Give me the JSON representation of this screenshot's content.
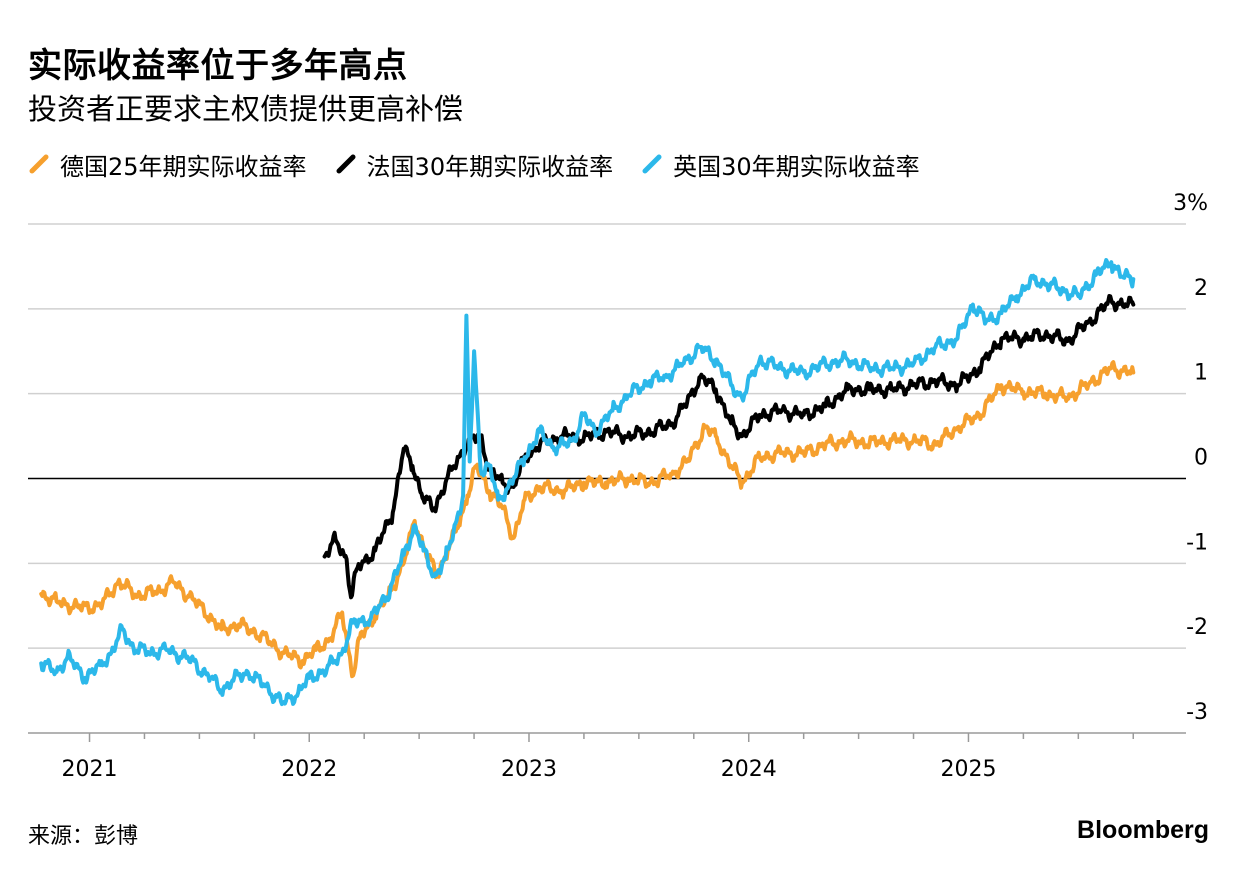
{
  "header": {
    "title": "实际收益率位于多年高点",
    "subtitle": "投资者正要求主权债提供更高补偿"
  },
  "footer": {
    "source": "来源：彭博",
    "brand": "Bloomberg"
  },
  "chart_data": {
    "type": "line",
    "title": "实际收益率位于多年高点",
    "subtitle": "投资者正要求主权债提供更高补偿",
    "xlabel": "",
    "ylabel": "",
    "unit": "%",
    "ylim": [
      -3,
      3
    ],
    "xlim": [
      2020.72,
      2025.99
    ],
    "yticks": [
      -3,
      -2,
      -1,
      0,
      1,
      2,
      3
    ],
    "ytick_labels": [
      "-3",
      "-2",
      "-1",
      "0",
      "1",
      "2",
      "3%"
    ],
    "xticks": [
      2021,
      2022,
      2023,
      2024,
      2025
    ],
    "xtick_labels": [
      "2021",
      "2022",
      "2023",
      "2024",
      "2025"
    ],
    "grid": true,
    "legend_position": "top-left",
    "series": [
      {
        "name": "德国25年期实际收益率",
        "color": "#f6a02e",
        "points": [
          [
            2020.78,
            -1.36
          ],
          [
            2020.85,
            -1.45
          ],
          [
            2020.95,
            -1.52
          ],
          [
            2021.05,
            -1.5
          ],
          [
            2021.13,
            -1.22
          ],
          [
            2021.22,
            -1.38
          ],
          [
            2021.32,
            -1.32
          ],
          [
            2021.38,
            -1.22
          ],
          [
            2021.45,
            -1.38
          ],
          [
            2021.52,
            -1.55
          ],
          [
            2021.6,
            -1.78
          ],
          [
            2021.68,
            -1.72
          ],
          [
            2021.78,
            -1.85
          ],
          [
            2021.88,
            -2.05
          ],
          [
            2021.97,
            -2.15
          ],
          [
            2022.03,
            -2.02
          ],
          [
            2022.1,
            -1.88
          ],
          [
            2022.15,
            -1.58
          ],
          [
            2022.18,
            -2.05
          ],
          [
            2022.2,
            -2.32
          ],
          [
            2022.23,
            -1.88
          ],
          [
            2022.3,
            -1.62
          ],
          [
            2022.36,
            -1.38
          ],
          [
            2022.43,
            -1.0
          ],
          [
            2022.48,
            -0.5
          ],
          [
            2022.52,
            -0.8
          ],
          [
            2022.58,
            -1.15
          ],
          [
            2022.63,
            -0.85
          ],
          [
            2022.68,
            -0.55
          ],
          [
            2022.72,
            -0.2
          ],
          [
            2022.76,
            0.15
          ],
          [
            2022.82,
            -0.15
          ],
          [
            2022.88,
            -0.35
          ],
          [
            2022.93,
            -0.7
          ],
          [
            2022.98,
            -0.25
          ],
          [
            2023.05,
            -0.1
          ],
          [
            2023.15,
            -0.15
          ],
          [
            2023.25,
            -0.05
          ],
          [
            2023.35,
            -0.05
          ],
          [
            2023.45,
            0.0
          ],
          [
            2023.55,
            -0.05
          ],
          [
            2023.65,
            0.05
          ],
          [
            2023.72,
            0.2
          ],
          [
            2023.8,
            0.6
          ],
          [
            2023.85,
            0.5
          ],
          [
            2023.92,
            0.15
          ],
          [
            2023.97,
            -0.05
          ],
          [
            2024.05,
            0.25
          ],
          [
            2024.15,
            0.3
          ],
          [
            2024.25,
            0.3
          ],
          [
            2024.35,
            0.4
          ],
          [
            2024.45,
            0.45
          ],
          [
            2024.55,
            0.42
          ],
          [
            2024.65,
            0.45
          ],
          [
            2024.75,
            0.45
          ],
          [
            2024.85,
            0.4
          ],
          [
            2024.95,
            0.6
          ],
          [
            2025.05,
            0.75
          ],
          [
            2025.15,
            1.1
          ],
          [
            2025.25,
            1.02
          ],
          [
            2025.35,
            1.0
          ],
          [
            2025.45,
            0.95
          ],
          [
            2025.55,
            1.12
          ],
          [
            2025.65,
            1.3
          ],
          [
            2025.75,
            1.25
          ]
        ]
      },
      {
        "name": "法国30年期实际收益率",
        "color": "#000000",
        "points": [
          [
            2022.07,
            -0.92
          ],
          [
            2022.12,
            -0.72
          ],
          [
            2022.17,
            -0.95
          ],
          [
            2022.19,
            -1.4
          ],
          [
            2022.22,
            -1.05
          ],
          [
            2022.3,
            -0.85
          ],
          [
            2022.38,
            -0.4
          ],
          [
            2022.43,
            0.35
          ],
          [
            2022.47,
            0.15
          ],
          [
            2022.52,
            -0.25
          ],
          [
            2022.57,
            -0.35
          ],
          [
            2022.62,
            -0.05
          ],
          [
            2022.68,
            0.25
          ],
          [
            2022.73,
            0.45
          ],
          [
            2022.78,
            0.5
          ],
          [
            2022.82,
            0.1
          ],
          [
            2022.88,
            -0.05
          ],
          [
            2022.93,
            -0.1
          ],
          [
            2022.98,
            0.25
          ],
          [
            2023.05,
            0.4
          ],
          [
            2023.15,
            0.5
          ],
          [
            2023.25,
            0.48
          ],
          [
            2023.35,
            0.55
          ],
          [
            2023.45,
            0.5
          ],
          [
            2023.55,
            0.55
          ],
          [
            2023.65,
            0.65
          ],
          [
            2023.72,
            0.9
          ],
          [
            2023.78,
            1.2
          ],
          [
            2023.85,
            1.05
          ],
          [
            2023.92,
            0.65
          ],
          [
            2023.97,
            0.5
          ],
          [
            2024.05,
            0.75
          ],
          [
            2024.15,
            0.8
          ],
          [
            2024.25,
            0.75
          ],
          [
            2024.35,
            0.85
          ],
          [
            2024.45,
            1.05
          ],
          [
            2024.55,
            1.05
          ],
          [
            2024.65,
            1.05
          ],
          [
            2024.75,
            1.1
          ],
          [
            2024.85,
            1.15
          ],
          [
            2024.95,
            1.1
          ],
          [
            2025.05,
            1.3
          ],
          [
            2025.15,
            1.65
          ],
          [
            2025.25,
            1.65
          ],
          [
            2025.35,
            1.7
          ],
          [
            2025.45,
            1.62
          ],
          [
            2025.55,
            1.85
          ],
          [
            2025.65,
            2.1
          ],
          [
            2025.7,
            2.05
          ],
          [
            2025.75,
            2.05
          ]
        ]
      },
      {
        "name": "英国30年期实际收益率",
        "color": "#2cb8ea",
        "points": [
          [
            2020.78,
            -2.18
          ],
          [
            2020.85,
            -2.28
          ],
          [
            2020.9,
            -2.1
          ],
          [
            2020.98,
            -2.35
          ],
          [
            2021.05,
            -2.2
          ],
          [
            2021.1,
            -2.05
          ],
          [
            2021.15,
            -1.78
          ],
          [
            2021.2,
            -2.0
          ],
          [
            2021.28,
            -2.05
          ],
          [
            2021.35,
            -2.02
          ],
          [
            2021.45,
            -2.12
          ],
          [
            2021.55,
            -2.35
          ],
          [
            2021.6,
            -2.5
          ],
          [
            2021.65,
            -2.38
          ],
          [
            2021.72,
            -2.28
          ],
          [
            2021.8,
            -2.45
          ],
          [
            2021.88,
            -2.65
          ],
          [
            2021.95,
            -2.52
          ],
          [
            2022.0,
            -2.35
          ],
          [
            2022.08,
            -2.25
          ],
          [
            2022.15,
            -2.05
          ],
          [
            2022.2,
            -1.7
          ],
          [
            2022.28,
            -1.65
          ],
          [
            2022.35,
            -1.4
          ],
          [
            2022.43,
            -0.9
          ],
          [
            2022.48,
            -0.55
          ],
          [
            2022.52,
            -0.85
          ],
          [
            2022.57,
            -1.15
          ],
          [
            2022.62,
            -0.95
          ],
          [
            2022.67,
            -0.5
          ],
          [
            2022.7,
            -0.2
          ],
          [
            2022.715,
            1.92
          ],
          [
            2022.73,
            0.2
          ],
          [
            2022.75,
            1.5
          ],
          [
            2022.78,
            0.1
          ],
          [
            2022.82,
            0.15
          ],
          [
            2022.86,
            -0.25
          ],
          [
            2022.92,
            -0.05
          ],
          [
            2022.98,
            0.25
          ],
          [
            2023.05,
            0.55
          ],
          [
            2023.12,
            0.35
          ],
          [
            2023.2,
            0.45
          ],
          [
            2023.25,
            0.75
          ],
          [
            2023.3,
            0.55
          ],
          [
            2023.38,
            0.8
          ],
          [
            2023.45,
            0.98
          ],
          [
            2023.55,
            1.15
          ],
          [
            2023.62,
            1.2
          ],
          [
            2023.7,
            1.35
          ],
          [
            2023.78,
            1.55
          ],
          [
            2023.85,
            1.4
          ],
          [
            2023.92,
            1.1
          ],
          [
            2023.97,
            0.95
          ],
          [
            2024.05,
            1.4
          ],
          [
            2024.15,
            1.3
          ],
          [
            2024.25,
            1.25
          ],
          [
            2024.35,
            1.35
          ],
          [
            2024.45,
            1.4
          ],
          [
            2024.55,
            1.3
          ],
          [
            2024.65,
            1.3
          ],
          [
            2024.75,
            1.35
          ],
          [
            2024.85,
            1.55
          ],
          [
            2024.95,
            1.65
          ],
          [
            2025.02,
            2.05
          ],
          [
            2025.08,
            1.85
          ],
          [
            2025.15,
            1.95
          ],
          [
            2025.22,
            2.15
          ],
          [
            2025.3,
            2.35
          ],
          [
            2025.4,
            2.25
          ],
          [
            2025.5,
            2.15
          ],
          [
            2025.58,
            2.4
          ],
          [
            2025.65,
            2.55
          ],
          [
            2025.7,
            2.38
          ],
          [
            2025.75,
            2.35
          ]
        ]
      }
    ]
  }
}
